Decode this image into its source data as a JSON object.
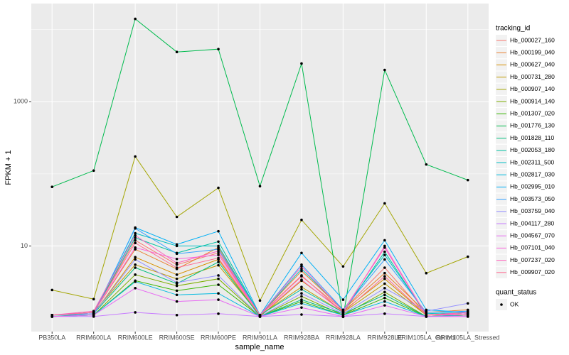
{
  "chart_data": {
    "type": "line",
    "x_label": "sample_name",
    "y_label": "FPKM + 1",
    "legend_title": "tracking_id",
    "point_legend_title": "quant_status",
    "point_legend_label": "OK",
    "point_color": "#000000",
    "log_y": true,
    "grid": true,
    "ylim": [
      0.65,
      23000
    ],
    "yticks": [
      10,
      1000
    ],
    "y_minor_grid": [
      100,
      10000
    ],
    "categories": [
      "PB350LA",
      "RRIM600LA",
      "RRIM600LE",
      "RRIM600SE",
      "RRIM600PE",
      "RRIM901LA",
      "RRIM928BA",
      "RRIM928LA",
      "RRIM928LE",
      "RRIM105LA_Control",
      "RRIM105LA_Stressed"
    ],
    "series": [
      {
        "name": "Hb_000027_160",
        "color": "#F8766D",
        "values": [
          1.1,
          1.2,
          12,
          5.5,
          8,
          1.1,
          3.8,
          1.3,
          5,
          1.1,
          1.2
        ]
      },
      {
        "name": "Hb_000199_040",
        "color": "#EA8331",
        "values": [
          1.1,
          1.2,
          9,
          4.8,
          9.5,
          1.1,
          4.5,
          1.3,
          4.2,
          1.2,
          1.3
        ]
      },
      {
        "name": "Hb_000627_040",
        "color": "#D89000",
        "values": [
          1.1,
          1.15,
          7,
          4,
          6.5,
          1.05,
          3.3,
          1.25,
          3.5,
          1.1,
          1.2
        ]
      },
      {
        "name": "Hb_000731_280",
        "color": "#C09B00",
        "values": [
          1.1,
          1.2,
          5.5,
          3.5,
          5.4,
          1.1,
          2.7,
          1.2,
          3,
          1.1,
          1.15
        ]
      },
      {
        "name": "Hb_000907_140",
        "color": "#A3A500",
        "values": [
          2.45,
          1.83,
          174,
          25.3,
          64,
          1.75,
          23,
          5.2,
          39,
          4.2,
          7.1
        ]
      },
      {
        "name": "Hb_000914_140",
        "color": "#7CAE00",
        "values": [
          1.05,
          1.1,
          4,
          2.8,
          3.5,
          1.05,
          2,
          1.1,
          2.3,
          1.05,
          1.1
        ]
      },
      {
        "name": "Hb_001307_020",
        "color": "#39B600",
        "values": [
          1.05,
          1.1,
          3.3,
          2.4,
          2.9,
          1.05,
          1.7,
          1.1,
          1.9,
          1.05,
          1.1
        ]
      },
      {
        "name": "Hb_001776_130",
        "color": "#00BB4E",
        "values": [
          66,
          111,
          14100,
          4900,
          5370,
          67.5,
          3390,
          1.04,
          2760,
          135,
          82
        ]
      },
      {
        "name": "Hb_001828_110",
        "color": "#00BF7D",
        "values": [
          1.05,
          1.15,
          5,
          3,
          6,
          1.05,
          1.8,
          1.15,
          2.1,
          1.05,
          1.1
        ]
      },
      {
        "name": "Hb_002053_180",
        "color": "#00C1A3",
        "values": [
          1.1,
          1.2,
          13,
          8,
          11.5,
          1.1,
          2.5,
          1.2,
          8.3,
          1.1,
          1.15
        ]
      },
      {
        "name": "Hb_002311_500",
        "color": "#00BFC4",
        "values": [
          1.1,
          1.2,
          15,
          10,
          10,
          1.1,
          4.8,
          1.3,
          7.5,
          1.15,
          1.2
        ]
      },
      {
        "name": "Hb_002817_030",
        "color": "#00BAE0",
        "values": [
          1.05,
          1.1,
          3.2,
          2.1,
          2.2,
          1.05,
          1.6,
          1.1,
          1.7,
          1.05,
          1.1
        ]
      },
      {
        "name": "Hb_002995_010",
        "color": "#00B0F6",
        "values": [
          1.05,
          1.1,
          18,
          10.5,
          16,
          1.1,
          8,
          1.8,
          12,
          1.3,
          1.2
        ]
      },
      {
        "name": "Hb_003573_050",
        "color": "#35A2FF",
        "values": [
          1.1,
          1.15,
          17.5,
          7.8,
          9,
          1.1,
          5.5,
          1.3,
          6.5,
          1.2,
          1.25
        ]
      },
      {
        "name": "Hb_003759_040",
        "color": "#9590FF",
        "values": [
          1.1,
          1.15,
          6.5,
          3.1,
          3.9,
          1.05,
          2.2,
          1.15,
          2.6,
          1.25,
          1.6
        ]
      },
      {
        "name": "Hb_004117_280",
        "color": "#C77CFF",
        "values": [
          1.05,
          1.05,
          1.2,
          1.1,
          1.15,
          1.05,
          1.12,
          1.05,
          1.15,
          1.05,
          1.05
        ]
      },
      {
        "name": "Hb_004567_070",
        "color": "#E76BF3",
        "values": [
          1.05,
          1.1,
          2.6,
          1.7,
          1.8,
          1.05,
          1.4,
          1.05,
          1.5,
          1.05,
          1.05
        ]
      },
      {
        "name": "Hb_007101_040",
        "color": "#FA62DB",
        "values": [
          1.1,
          1.2,
          9.5,
          6.6,
          7.5,
          1.1,
          3.4,
          1.2,
          10,
          1.1,
          1.15
        ]
      },
      {
        "name": "Hb_007237_020",
        "color": "#FF62BC",
        "values": [
          1.1,
          1.25,
          14,
          5.8,
          8.5,
          1.1,
          5.2,
          1.25,
          9.5,
          1.1,
          1.2
        ]
      },
      {
        "name": "Hb_009907_020",
        "color": "#FF6C91",
        "values": [
          1.1,
          1.2,
          11,
          5,
          6.8,
          1.1,
          3.9,
          1.2,
          3.8,
          1.1,
          1.1
        ]
      }
    ]
  }
}
